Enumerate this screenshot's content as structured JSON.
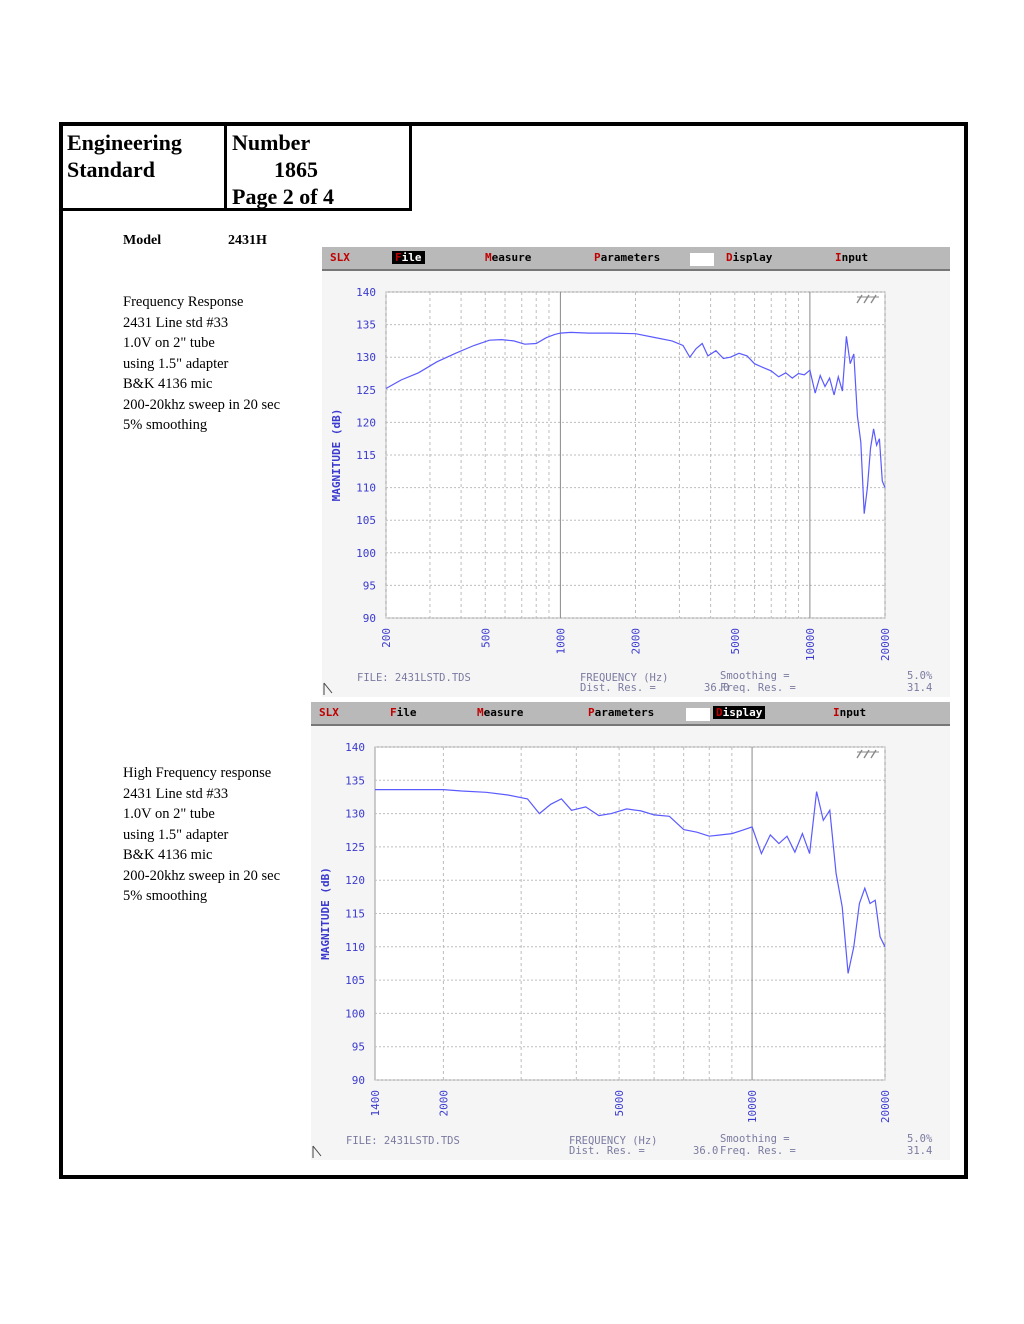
{
  "header": {
    "title_line1": "Engineering",
    "title_line2": "Standard",
    "number_label": "Number",
    "number_value": "1865",
    "page": "Page 2 of 4"
  },
  "model": {
    "label": "Model",
    "value": "2431H"
  },
  "notes_top": [
    "Frequency Response",
    "2431 Line std #33",
    "1.0V on 2\" tube",
    "using 1.5\" adapter",
    "B&K 4136 mic",
    "200-20khz sweep in 20 sec",
    "5% smoothing"
  ],
  "notes_bottom": [
    "High Frequency response",
    "2431 Line std #33",
    "1.0V on 2\" tube",
    "using 1.5\" adapter",
    "B&K 4136 mic",
    "200-20khz sweep in 20 sec",
    "5% smoothing"
  ],
  "menu1": {
    "slx": "SLX",
    "file": "File",
    "measure": "Measure",
    "parameters": "Parameters",
    "display": "Display",
    "input": "Input",
    "selected": "file"
  },
  "menu2": {
    "slx": "SLX",
    "file": "File",
    "measure": "Measure",
    "parameters": "Parameters",
    "display": "Display",
    "input": "Input",
    "selected": "display"
  },
  "footer": {
    "file": "FILE: 2431LSTD.TDS",
    "freq_label": "FREQUENCY (Hz)",
    "dist_res": "Dist. Res. =",
    "dist_res_val": "36.0",
    "smoothing": "Smoothing =",
    "smoothing_val": "5.0%",
    "freq_res": "Freq. Res. =",
    "freq_res_val": "31.4"
  },
  "colors": {
    "curve": "#5a5aff",
    "axis_text": "#3a3ad0",
    "menu_letter": "#c00000"
  },
  "chart_data": [
    {
      "type": "line",
      "ylabel": "MAGNITUDE (dB)",
      "xlabel": "FREQUENCY (Hz)",
      "xscale": "log",
      "xlim": [
        200,
        20000
      ],
      "ylim": [
        90,
        140
      ],
      "yticks": [
        90,
        95,
        100,
        105,
        110,
        115,
        120,
        125,
        130,
        135,
        140
      ],
      "xtick_labels": [
        "200",
        "500",
        "1000",
        "2000",
        "5000",
        "10000",
        "20000"
      ],
      "xticks": [
        200,
        500,
        1000,
        2000,
        5000,
        10000,
        20000
      ],
      "grid": true,
      "series": [
        {
          "x": [
            200,
            230,
            270,
            320,
            380,
            450,
            520,
            580,
            650,
            720,
            800,
            880,
            950,
            1000,
            1100,
            1300,
            1600,
            2000,
            2400,
            2800,
            3100,
            3300,
            3500,
            3700,
            3900,
            4200,
            4500,
            4800,
            5200,
            5600,
            6000,
            6500,
            7000,
            7500,
            8000,
            8500,
            9000,
            9500,
            10000,
            10500,
            11000,
            11500,
            12000,
            12500,
            13000,
            13500,
            14000,
            14500,
            15000,
            15500,
            16000,
            16500,
            17000,
            17500,
            18000,
            18500,
            19000,
            19500,
            20000
          ],
          "y": [
            125.2,
            126.5,
            127.6,
            129.3,
            130.6,
            131.8,
            132.6,
            132.7,
            132.5,
            132.0,
            132.1,
            133.0,
            133.5,
            133.7,
            133.8,
            133.7,
            133.7,
            133.6,
            133.0,
            132.5,
            131.8,
            130.0,
            131.3,
            132.1,
            130.2,
            131.0,
            129.8,
            130.0,
            130.6,
            130.2,
            129.0,
            128.4,
            127.9,
            127.0,
            127.6,
            126.8,
            127.5,
            127.3,
            128.0,
            124.5,
            127.2,
            125.5,
            126.8,
            124.2,
            127.0,
            124.8,
            133.2,
            129.0,
            130.5,
            121.0,
            117.0,
            106.0,
            110.0,
            116.0,
            119.0,
            116.5,
            117.5,
            111.0,
            110.0
          ]
        }
      ]
    },
    {
      "type": "line",
      "ylabel": "MAGNITUDE (dB)",
      "xlabel": "FREQUENCY (Hz)",
      "xscale": "log",
      "xlim": [
        1400,
        20000
      ],
      "ylim": [
        90,
        140
      ],
      "yticks": [
        90,
        95,
        100,
        105,
        110,
        115,
        120,
        125,
        130,
        135,
        140
      ],
      "xtick_labels": [
        "1400",
        "2000",
        "5000",
        "10000",
        "20000"
      ],
      "xticks": [
        1400,
        2000,
        5000,
        10000,
        20000
      ],
      "grid": true,
      "series": [
        {
          "x": [
            1400,
            1600,
            1800,
            2000,
            2200,
            2500,
            2800,
            3100,
            3300,
            3500,
            3700,
            3900,
            4200,
            4500,
            4800,
            5200,
            5600,
            6000,
            6500,
            7000,
            7500,
            8000,
            8500,
            9000,
            9500,
            10000,
            10500,
            11000,
            11500,
            12000,
            12500,
            13000,
            13500,
            14000,
            14500,
            15000,
            15500,
            16000,
            16500,
            17000,
            17500,
            18000,
            18500,
            19000,
            19500,
            20000
          ],
          "y": [
            133.6,
            133.6,
            133.6,
            133.6,
            133.4,
            133.2,
            132.8,
            132.2,
            130.0,
            131.4,
            132.2,
            130.5,
            131.0,
            129.7,
            130.0,
            130.7,
            130.4,
            129.8,
            129.6,
            127.6,
            127.2,
            126.6,
            126.8,
            127.0,
            127.5,
            128.0,
            124.0,
            126.8,
            125.5,
            126.6,
            124.2,
            127.0,
            124.0,
            133.3,
            129.0,
            130.5,
            121.0,
            116.0,
            106.0,
            110.0,
            116.5,
            118.8,
            116.5,
            117.0,
            111.5,
            110.0
          ]
        }
      ]
    }
  ]
}
